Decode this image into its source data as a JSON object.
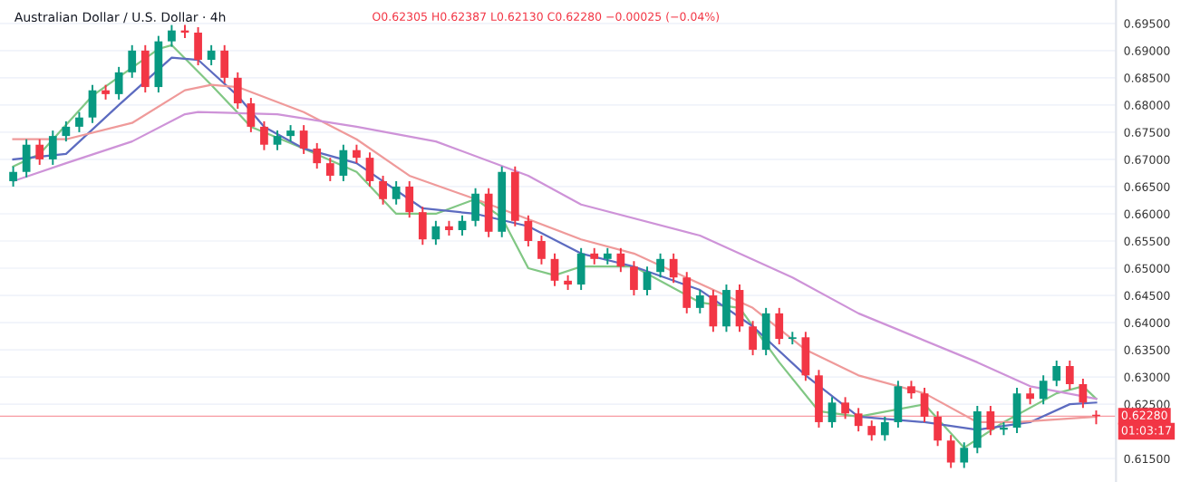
{
  "chart_data": {
    "type": "candlestick",
    "title": "Australian Dollar / U.S. Dollar · 4h",
    "annotations": [
      "O0.62305 H0.62387 L0.62130 C0.62280 −0.00025 (−0.04%)",
      "01:03:17"
    ],
    "categories": [
      null,
      null,
      null,
      null,
      null,
      null,
      null,
      null,
      null,
      null,
      null,
      null,
      null,
      null,
      null,
      null,
      null,
      null,
      null,
      null,
      null,
      null,
      null,
      null,
      null,
      null,
      null,
      null,
      null,
      null,
      null,
      null,
      null,
      null,
      null,
      null,
      null,
      null,
      null,
      null,
      null,
      null,
      null,
      null,
      null,
      null,
      null,
      null,
      null,
      null,
      null,
      null,
      null,
      null,
      null,
      null,
      null,
      null,
      null,
      null,
      null,
      null,
      null,
      null,
      null,
      null,
      null,
      null,
      null,
      null,
      null,
      null,
      null,
      null,
      null,
      null,
      null,
      null,
      null,
      null,
      null,
      null,
      null
    ],
    "ohlc": [
      [
        0.666,
        0.6687,
        0.665,
        0.6677
      ],
      [
        0.6677,
        0.6737,
        0.6667,
        0.6727
      ],
      [
        0.6727,
        0.6737,
        0.669,
        0.67
      ],
      [
        0.67,
        0.6753,
        0.669,
        0.6743
      ],
      [
        0.6743,
        0.677,
        0.6733,
        0.676
      ],
      [
        0.676,
        0.6787,
        0.675,
        0.6777
      ],
      [
        0.6777,
        0.6837,
        0.6767,
        0.6827
      ],
      [
        0.6827,
        0.6837,
        0.681,
        0.682
      ],
      [
        0.682,
        0.687,
        0.681,
        0.686
      ],
      [
        0.686,
        0.691,
        0.685,
        0.69
      ],
      [
        0.69,
        0.691,
        0.6823,
        0.6833
      ],
      [
        0.6833,
        0.6927,
        0.6823,
        0.6917
      ],
      [
        0.6917,
        0.6947,
        0.6907,
        0.6937
      ],
      [
        0.6937,
        0.6947,
        0.6923,
        0.6933
      ],
      [
        0.6933,
        0.6943,
        0.6873,
        0.6883
      ],
      [
        0.6883,
        0.691,
        0.6873,
        0.69
      ],
      [
        0.69,
        0.691,
        0.684,
        0.685
      ],
      [
        0.685,
        0.686,
        0.6793,
        0.6803
      ],
      [
        0.6803,
        0.6813,
        0.675,
        0.676
      ],
      [
        0.676,
        0.677,
        0.6717,
        0.6727
      ],
      [
        0.6727,
        0.6753,
        0.6717,
        0.6743
      ],
      [
        0.6743,
        0.6763,
        0.6733,
        0.6753
      ],
      [
        0.6753,
        0.6763,
        0.671,
        0.672
      ],
      [
        0.672,
        0.673,
        0.6683,
        0.6693
      ],
      [
        0.6693,
        0.6703,
        0.666,
        0.667
      ],
      [
        0.667,
        0.6727,
        0.666,
        0.6717
      ],
      [
        0.6717,
        0.6727,
        0.6693,
        0.6703
      ],
      [
        0.6703,
        0.6713,
        0.665,
        0.666
      ],
      [
        0.666,
        0.667,
        0.6617,
        0.6627
      ],
      [
        0.6627,
        0.666,
        0.6617,
        0.665
      ],
      [
        0.665,
        0.666,
        0.6593,
        0.6603
      ],
      [
        0.6603,
        0.6613,
        0.6543,
        0.6553
      ],
      [
        0.6553,
        0.6587,
        0.6543,
        0.6577
      ],
      [
        0.6577,
        0.6587,
        0.656,
        0.657
      ],
      [
        0.657,
        0.6597,
        0.656,
        0.6587
      ],
      [
        0.6587,
        0.6647,
        0.6577,
        0.6637
      ],
      [
        0.6637,
        0.6647,
        0.6557,
        0.6567
      ],
      [
        0.6567,
        0.6687,
        0.6557,
        0.6677
      ],
      [
        0.6677,
        0.6687,
        0.6577,
        0.6587
      ],
      [
        0.6587,
        0.6597,
        0.654,
        0.655
      ],
      [
        0.655,
        0.656,
        0.6507,
        0.6517
      ],
      [
        0.6517,
        0.6527,
        0.6467,
        0.6477
      ],
      [
        0.6477,
        0.6487,
        0.646,
        0.647
      ],
      [
        0.647,
        0.6537,
        0.646,
        0.6527
      ],
      [
        0.6527,
        0.6537,
        0.6507,
        0.6517
      ],
      [
        0.6517,
        0.6537,
        0.6507,
        0.6527
      ],
      [
        0.6527,
        0.6537,
        0.6493,
        0.6503
      ],
      [
        0.6503,
        0.6513,
        0.645,
        0.646
      ],
      [
        0.646,
        0.6503,
        0.645,
        0.6493
      ],
      [
        0.6493,
        0.6527,
        0.6483,
        0.6517
      ],
      [
        0.6517,
        0.6527,
        0.6473,
        0.6483
      ],
      [
        0.6483,
        0.6493,
        0.6417,
        0.6427
      ],
      [
        0.6427,
        0.646,
        0.6417,
        0.645
      ],
      [
        0.645,
        0.646,
        0.6383,
        0.6393
      ],
      [
        0.6393,
        0.647,
        0.6383,
        0.646
      ],
      [
        0.646,
        0.647,
        0.6383,
        0.6393
      ],
      [
        0.6393,
        0.6403,
        0.634,
        0.635
      ],
      [
        0.635,
        0.6427,
        0.634,
        0.6417
      ],
      [
        0.6417,
        0.6427,
        0.636,
        0.637
      ],
      [
        0.637,
        0.6383,
        0.636,
        0.6373
      ],
      [
        0.6373,
        0.6383,
        0.6293,
        0.6303
      ],
      [
        0.6303,
        0.6313,
        0.6207,
        0.6217
      ],
      [
        0.6217,
        0.6263,
        0.6207,
        0.6253
      ],
      [
        0.6253,
        0.6263,
        0.6223,
        0.6233
      ],
      [
        0.6233,
        0.6243,
        0.62,
        0.621
      ],
      [
        0.621,
        0.622,
        0.6183,
        0.6193
      ],
      [
        0.6193,
        0.6227,
        0.6183,
        0.6217
      ],
      [
        0.6217,
        0.6293,
        0.6207,
        0.6283
      ],
      [
        0.6283,
        0.6293,
        0.626,
        0.627
      ],
      [
        0.627,
        0.628,
        0.6217,
        0.6227
      ],
      [
        0.6227,
        0.6237,
        0.6173,
        0.6183
      ],
      [
        0.6183,
        0.6193,
        0.6133,
        0.6143
      ],
      [
        0.6143,
        0.618,
        0.6133,
        0.617
      ],
      [
        0.617,
        0.6247,
        0.616,
        0.6237
      ],
      [
        0.6237,
        0.6247,
        0.6193,
        0.6203
      ],
      [
        0.6203,
        0.6217,
        0.6193,
        0.6207
      ],
      [
        0.6207,
        0.628,
        0.6197,
        0.627
      ],
      [
        0.627,
        0.628,
        0.625,
        0.626
      ],
      [
        0.626,
        0.6303,
        0.625,
        0.6293
      ],
      [
        0.6293,
        0.633,
        0.6283,
        0.632
      ],
      [
        0.632,
        0.633,
        0.6277,
        0.6287
      ],
      [
        0.6287,
        0.6297,
        0.6243,
        0.6253
      ],
      [
        0.62305,
        0.62387,
        0.6213,
        0.6228
      ]
    ],
    "colors": [
      "#089981",
      "#089981",
      "#f23645",
      "#089981",
      "#089981",
      "#089981",
      "#089981",
      "#f23645",
      "#089981",
      "#089981",
      "#f23645",
      "#089981",
      "#089981",
      "#f23645",
      "#f23645",
      "#089981",
      "#f23645",
      "#f23645",
      "#f23645",
      "#f23645",
      "#089981",
      "#089981",
      "#f23645",
      "#f23645",
      "#f23645",
      "#089981",
      "#f23645",
      "#f23645",
      "#f23645",
      "#089981",
      "#f23645",
      "#f23645",
      "#089981",
      "#f23645",
      "#089981",
      "#089981",
      "#f23645",
      "#089981",
      "#f23645",
      "#f23645",
      "#f23645",
      "#f23645",
      "#f23645",
      "#089981",
      "#f23645",
      "#089981",
      "#f23645",
      "#f23645",
      "#089981",
      "#089981",
      "#f23645",
      "#f23645",
      "#089981",
      "#f23645",
      "#089981",
      "#f23645",
      "#f23645",
      "#089981",
      "#f23645",
      "#089981",
      "#f23645",
      "#f23645",
      "#089981",
      "#f23645",
      "#f23645",
      "#f23645",
      "#089981",
      "#089981",
      "#f23645",
      "#f23645",
      "#f23645",
      "#f23645",
      "#089981",
      "#089981",
      "#f23645",
      "#089981",
      "#089981",
      "#f23645",
      "#089981",
      "#089981",
      "#f23645",
      "#f23645",
      "#f23645"
    ],
    "series": [
      {
        "type": "line",
        "color": "#81c784",
        "values": [
          0.6687,
          null,
          0.671,
          null,
          null,
          null,
          0.6817,
          null,
          null,
          null,
          null,
          0.6903,
          0.691,
          null,
          null,
          0.6837,
          null,
          null,
          0.676,
          null,
          null,
          null,
          0.672,
          null,
          null,
          null,
          0.6677,
          null,
          null,
          0.66,
          null,
          null,
          0.66,
          null,
          null,
          0.6627,
          null,
          0.6593,
          null,
          0.65,
          null,
          0.6487,
          null,
          0.6503,
          null,
          null,
          null,
          0.6503,
          null,
          null,
          null,
          null,
          0.6437,
          null,
          null,
          0.6427,
          null,
          null,
          0.6327,
          null,
          null,
          0.6237,
          null,
          null,
          0.6227,
          null,
          null,
          null,
          null,
          0.625,
          null,
          null,
          0.617,
          null,
          null,
          0.6217,
          null,
          null,
          null,
          0.627,
          null,
          0.6283,
          0.626
        ]
      },
      {
        "type": "line",
        "color": "#5c6bc0",
        "values": [
          0.67,
          null,
          null,
          null,
          0.671,
          null,
          null,
          null,
          0.68,
          null,
          null,
          null,
          0.6887,
          null,
          0.6883,
          null,
          null,
          0.6817,
          null,
          0.676,
          null,
          null,
          0.672,
          null,
          null,
          null,
          0.6693,
          null,
          null,
          null,
          null,
          0.661,
          null,
          null,
          null,
          0.66,
          null,
          null,
          null,
          0.6577,
          null,
          null,
          null,
          0.6527,
          null,
          null,
          null,
          0.6503,
          null,
          null,
          null,
          null,
          0.646,
          null,
          null,
          null,
          0.6393,
          null,
          null,
          null,
          0.6303,
          null,
          null,
          null,
          0.6227,
          null,
          null,
          null,
          null,
          0.6217,
          null,
          null,
          null,
          0.6203,
          null,
          null,
          null,
          0.6217,
          null,
          null,
          0.625,
          null,
          0.6253
        ]
      },
      {
        "type": "line",
        "color": "#ef9a9a",
        "values": [
          0.6737,
          null,
          null,
          null,
          0.6737,
          null,
          null,
          null,
          null,
          0.6767,
          null,
          null,
          null,
          0.6827,
          null,
          0.6837,
          null,
          0.6833,
          null,
          null,
          null,
          null,
          0.6787,
          null,
          null,
          null,
          0.6737,
          null,
          null,
          null,
          0.667,
          null,
          null,
          null,
          null,
          0.6627,
          null,
          null,
          null,
          null,
          null,
          null,
          null,
          0.6553,
          null,
          null,
          null,
          0.6527,
          null,
          null,
          null,
          null,
          null,
          null,
          null,
          null,
          0.6427,
          null,
          null,
          null,
          0.635,
          null,
          null,
          null,
          0.6303,
          null,
          null,
          null,
          null,
          0.627,
          null,
          null,
          null,
          0.6217,
          null,
          null,
          0.6217,
          null,
          null,
          null,
          null,
          null,
          0.6227
        ]
      },
      {
        "type": "line",
        "color": "#ce93d8",
        "values": [
          0.666,
          null,
          null,
          null,
          0.6693,
          null,
          null,
          null,
          null,
          0.6733,
          null,
          null,
          null,
          0.6783,
          0.6787,
          null,
          null,
          null,
          null,
          null,
          0.6783,
          null,
          null,
          null,
          null,
          null,
          0.676,
          null,
          null,
          null,
          null,
          null,
          0.6733,
          null,
          null,
          null,
          null,
          null,
          null,
          0.667,
          null,
          null,
          null,
          0.6617,
          null,
          null,
          null,
          null,
          null,
          null,
          null,
          null,
          0.656,
          null,
          null,
          null,
          null,
          null,
          null,
          0.6483,
          null,
          null,
          null,
          null,
          0.6417,
          null,
          null,
          null,
          null,
          null,
          null,
          null,
          null,
          0.6327,
          null,
          null,
          null,
          0.6283,
          null,
          null,
          null,
          null,
          0.626
        ]
      }
    ],
    "ylim": [
      0.6107,
      0.6993
    ],
    "yticks": [
      {
        "value": 0.615,
        "label": "0.61500"
      },
      {
        "value": 0.625,
        "label": "0.62500"
      },
      {
        "value": 0.63,
        "label": "0.63000"
      },
      {
        "value": 0.635,
        "label": "0.63500"
      },
      {
        "value": 0.64,
        "label": "0.64000"
      },
      {
        "value": 0.645,
        "label": "0.64500"
      },
      {
        "value": 0.65,
        "label": "0.65000"
      },
      {
        "value": 0.655,
        "label": "0.65500"
      },
      {
        "value": 0.66,
        "label": "0.66000"
      },
      {
        "value": 0.665,
        "label": "0.66500"
      },
      {
        "value": 0.67,
        "label": "0.67000"
      },
      {
        "value": 0.675,
        "label": "0.67500"
      },
      {
        "value": 0.68,
        "label": "0.68000"
      },
      {
        "value": 0.685,
        "label": "0.68500"
      },
      {
        "value": 0.69,
        "label": "0.69000"
      },
      {
        "value": 0.695,
        "label": "0.69500"
      }
    ],
    "ref_lines": [
      {
        "axis": "y",
        "value": 0.6228,
        "label": "0.62280",
        "color": "#f23645"
      }
    ],
    "grid": "y",
    "tick_labels": "y"
  }
}
